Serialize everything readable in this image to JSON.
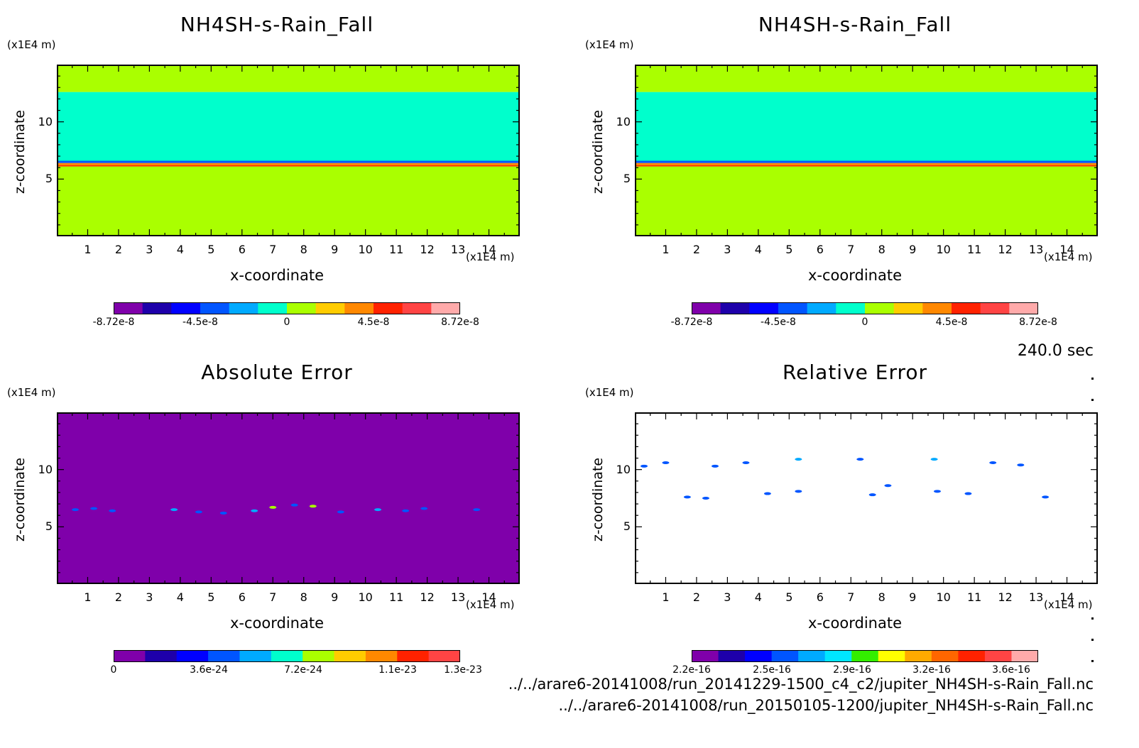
{
  "chart_data": [
    {
      "type": "heatmap",
      "title": "NH4SH-s-Rain_Fall",
      "xlabel": "x-coordinate",
      "ylabel": "z-coordinate",
      "xunit": "(x1E4 m)",
      "zunit": "(x1E4 m)",
      "xlim": [
        0,
        15
      ],
      "ylim": [
        0,
        15
      ],
      "xticks": [
        1,
        2,
        3,
        4,
        5,
        6,
        7,
        8,
        9,
        10,
        11,
        12,
        13,
        14
      ],
      "yticks": [
        5,
        10
      ],
      "colorbar": {
        "colors": [
          "#7f00aa",
          "#1e00aa",
          "#0000ff",
          "#0055ff",
          "#00aaff",
          "#00ffcc",
          "#aaff00",
          "#ffcc00",
          "#ff8800",
          "#ff2200",
          "#ff4444",
          "#ffaaaa"
        ],
        "tick_labels": [
          "-8.72e-8",
          "-4.5e-8",
          "0",
          "4.5e-8",
          "8.72e-8"
        ]
      },
      "fields": [
        {
          "zmin": 12.6,
          "zmax": 15,
          "color": "#aaff00"
        },
        {
          "zmin": 6.6,
          "zmax": 12.6,
          "color": "#00ffcc"
        },
        {
          "zmin": 6.4,
          "zmax": 6.6,
          "color": "#0055ff"
        },
        {
          "zmin": 6.2,
          "zmax": 6.4,
          "color": "#ff8800"
        },
        {
          "zmin": 6.1,
          "zmax": 6.2,
          "color": "#ff2200"
        },
        {
          "zmin": 0,
          "zmax": 6.1,
          "color": "#aaff00"
        }
      ]
    },
    {
      "type": "heatmap",
      "title": "NH4SH-s-Rain_Fall",
      "xlabel": "x-coordinate",
      "ylabel": "z-coordinate",
      "xunit": "(x1E4 m)",
      "zunit": "(x1E4 m)",
      "xlim": [
        0,
        15
      ],
      "ylim": [
        0,
        15
      ],
      "xticks": [
        1,
        2,
        3,
        4,
        5,
        6,
        7,
        8,
        9,
        10,
        11,
        12,
        13,
        14
      ],
      "yticks": [
        5,
        10
      ],
      "colorbar": {
        "colors": [
          "#7f00aa",
          "#1e00aa",
          "#0000ff",
          "#0055ff",
          "#00aaff",
          "#00ffcc",
          "#aaff00",
          "#ffcc00",
          "#ff8800",
          "#ff2200",
          "#ff4444",
          "#ffaaaa"
        ],
        "tick_labels": [
          "-8.72e-8",
          "-4.5e-8",
          "0",
          "4.5e-8",
          "8.72e-8"
        ]
      },
      "fields": [
        {
          "zmin": 12.6,
          "zmax": 15,
          "color": "#aaff00"
        },
        {
          "zmin": 6.6,
          "zmax": 12.6,
          "color": "#00ffcc"
        },
        {
          "zmin": 6.4,
          "zmax": 6.6,
          "color": "#0055ff"
        },
        {
          "zmin": 6.2,
          "zmax": 6.4,
          "color": "#ff8800"
        },
        {
          "zmin": 6.1,
          "zmax": 6.2,
          "color": "#ff2200"
        },
        {
          "zmin": 0,
          "zmax": 6.1,
          "color": "#aaff00"
        }
      ]
    },
    {
      "type": "heatmap",
      "title": "Absolute Error",
      "xlabel": "x-coordinate",
      "ylabel": "z-coordinate",
      "xunit": "(x1E4 m)",
      "zunit": "(x1E4 m)",
      "xlim": [
        0,
        15
      ],
      "ylim": [
        0,
        15
      ],
      "xticks": [
        1,
        2,
        3,
        4,
        5,
        6,
        7,
        8,
        9,
        10,
        11,
        12,
        13,
        14
      ],
      "yticks": [
        5,
        10
      ],
      "colorbar": {
        "colors": [
          "#7f00aa",
          "#1e00aa",
          "#0000ff",
          "#0055ff",
          "#00aaff",
          "#00ffcc",
          "#aaff00",
          "#ffcc00",
          "#ff8800",
          "#ff2200",
          "#ff4444"
        ],
        "tick_labels": [
          "0",
          "3.6e-24",
          "7.2e-24",
          "1.1e-23",
          "1.3e-23"
        ]
      },
      "background": "#7f00aa",
      "spots": [
        {
          "x": 0.6,
          "z": 6.5,
          "color": "#0055ff"
        },
        {
          "x": 1.2,
          "z": 6.6,
          "color": "#0055ff"
        },
        {
          "x": 1.8,
          "z": 6.4,
          "color": "#0055ff"
        },
        {
          "x": 3.8,
          "z": 6.5,
          "color": "#00aaff"
        },
        {
          "x": 4.6,
          "z": 6.3,
          "color": "#0055ff"
        },
        {
          "x": 5.4,
          "z": 6.2,
          "color": "#0055ff"
        },
        {
          "x": 6.4,
          "z": 6.4,
          "color": "#00aaff"
        },
        {
          "x": 7.0,
          "z": 6.7,
          "color": "#aaff00"
        },
        {
          "x": 7.7,
          "z": 6.9,
          "color": "#0055ff"
        },
        {
          "x": 8.3,
          "z": 6.8,
          "color": "#aaff00"
        },
        {
          "x": 9.2,
          "z": 6.3,
          "color": "#0055ff"
        },
        {
          "x": 10.4,
          "z": 6.5,
          "color": "#00aaff"
        },
        {
          "x": 11.3,
          "z": 6.4,
          "color": "#0055ff"
        },
        {
          "x": 11.9,
          "z": 6.6,
          "color": "#0055ff"
        },
        {
          "x": 13.6,
          "z": 6.5,
          "color": "#0055ff"
        }
      ]
    },
    {
      "type": "heatmap",
      "title": "Relative Error",
      "xlabel": "x-coordinate",
      "ylabel": "z-coordinate",
      "xunit": "(x1E4 m)",
      "zunit": "(x1E4 m)",
      "xlim": [
        0,
        15
      ],
      "ylim": [
        0,
        15
      ],
      "xticks": [
        1,
        2,
        3,
        4,
        5,
        6,
        7,
        8,
        9,
        10,
        11,
        12,
        13,
        14
      ],
      "yticks": [
        5,
        10
      ],
      "colorbar": {
        "colors": [
          "#7f00aa",
          "#1e00aa",
          "#0000ff",
          "#0055ff",
          "#00aaff",
          "#00e6ff",
          "#33ee00",
          "#ffff00",
          "#ffaa00",
          "#ff6600",
          "#ff2200",
          "#ff4444",
          "#ffaaaa"
        ],
        "tick_labels": [
          "2.2e-16",
          "2.5e-16",
          "2.9e-16",
          "3.2e-16",
          "3.6e-16"
        ]
      },
      "background": "#ffffff",
      "spots": [
        {
          "x": 0.3,
          "z": 10.3,
          "color": "#0055ff"
        },
        {
          "x": 1.0,
          "z": 10.6,
          "color": "#0055ff"
        },
        {
          "x": 1.7,
          "z": 7.6,
          "color": "#0055ff"
        },
        {
          "x": 2.3,
          "z": 7.5,
          "color": "#0055ff"
        },
        {
          "x": 2.6,
          "z": 10.3,
          "color": "#0055ff"
        },
        {
          "x": 3.6,
          "z": 10.6,
          "color": "#0055ff"
        },
        {
          "x": 4.3,
          "z": 7.9,
          "color": "#0055ff"
        },
        {
          "x": 5.3,
          "z": 10.9,
          "color": "#00aaff"
        },
        {
          "x": 5.3,
          "z": 8.1,
          "color": "#0055ff"
        },
        {
          "x": 7.3,
          "z": 10.9,
          "color": "#0055ff"
        },
        {
          "x": 7.7,
          "z": 7.8,
          "color": "#0055ff"
        },
        {
          "x": 8.2,
          "z": 8.6,
          "color": "#0055ff"
        },
        {
          "x": 9.7,
          "z": 10.9,
          "color": "#00aaff"
        },
        {
          "x": 9.8,
          "z": 8.1,
          "color": "#0055ff"
        },
        {
          "x": 10.8,
          "z": 7.9,
          "color": "#0055ff"
        },
        {
          "x": 11.6,
          "z": 10.6,
          "color": "#0055ff"
        },
        {
          "x": 12.5,
          "z": 10.4,
          "color": "#0055ff"
        },
        {
          "x": 13.3,
          "z": 7.6,
          "color": "#0055ff"
        }
      ]
    }
  ],
  "time_label": "240.0 sec",
  "file_paths": [
    "../../arare6-20141008/run_20141229-1500_c4_c2/jupiter_NH4SH-s-Rain_Fall.nc",
    "../../arare6-20141008/run_20150105-1200/jupiter_NH4SH-s-Rain_Fall.nc"
  ]
}
